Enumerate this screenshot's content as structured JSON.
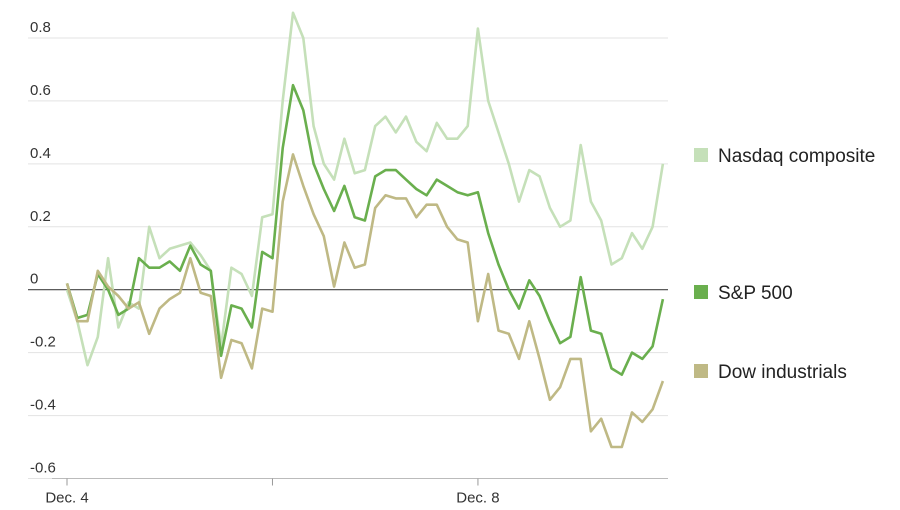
{
  "chart_data": {
    "type": "line",
    "x": [
      0,
      0.1,
      0.2,
      0.3,
      0.4,
      0.5,
      0.6,
      0.7,
      0.8,
      0.9,
      1,
      1.1,
      1.2,
      1.3,
      1.4,
      1.5,
      1.6,
      1.7,
      1.8,
      1.9,
      2,
      2.1,
      2.2,
      2.3,
      2.4,
      2.5,
      2.6,
      2.7,
      2.8,
      2.9,
      3,
      3.1,
      3.2,
      3.3,
      3.4,
      3.5,
      3.6,
      3.7,
      3.8,
      3.9,
      4,
      4.1,
      4.2,
      4.3,
      4.4,
      4.5,
      4.6,
      4.7,
      4.8,
      4.9,
      5,
      5.1,
      5.2,
      5.3,
      5.4,
      5.5,
      5.6,
      5.7,
      5.8
    ],
    "series": [
      {
        "name": "Nasdaq composite",
        "color": "#c5e0b9",
        "values": [
          0,
          -0.1,
          -0.24,
          -0.15,
          0.1,
          -0.12,
          -0.04,
          -0.06,
          0.2,
          0.1,
          0.13,
          0.14,
          0.15,
          0.11,
          0.06,
          -0.18,
          0.07,
          0.05,
          -0.02,
          0.23,
          0.24,
          0.6,
          0.88,
          0.8,
          0.52,
          0.4,
          0.35,
          0.48,
          0.37,
          0.38,
          0.52,
          0.55,
          0.5,
          0.55,
          0.47,
          0.44,
          0.53,
          0.48,
          0.48,
          0.52,
          0.83,
          0.6,
          0.5,
          0.4,
          0.28,
          0.38,
          0.36,
          0.26,
          0.2,
          0.22,
          0.46,
          0.28,
          0.22,
          0.08,
          0.1,
          0.18,
          0.13,
          0.2,
          0.4
        ]
      },
      {
        "name": "S&P 500",
        "color": "#6aaf4e",
        "values": [
          0.02,
          -0.09,
          -0.08,
          0.05,
          0,
          -0.08,
          -0.06,
          0.1,
          0.07,
          0.07,
          0.09,
          0.06,
          0.14,
          0.08,
          0.06,
          -0.21,
          -0.05,
          -0.06,
          -0.12,
          0.12,
          0.1,
          0.45,
          0.65,
          0.57,
          0.4,
          0.32,
          0.25,
          0.33,
          0.23,
          0.22,
          0.36,
          0.38,
          0.38,
          0.35,
          0.32,
          0.3,
          0.35,
          0.33,
          0.31,
          0.3,
          0.31,
          0.18,
          0.08,
          0,
          -0.06,
          0.03,
          -0.02,
          -0.1,
          -0.17,
          -0.15,
          0.04,
          -0.13,
          -0.14,
          -0.25,
          -0.27,
          -0.2,
          -0.22,
          -0.18,
          -0.03
        ]
      },
      {
        "name": "Dow industrials",
        "color": "#bfb985",
        "values": [
          0.02,
          -0.1,
          -0.1,
          0.06,
          0.01,
          -0.02,
          -0.06,
          -0.04,
          -0.14,
          -0.06,
          -0.03,
          -0.01,
          0.1,
          -0.01,
          -0.02,
          -0.28,
          -0.16,
          -0.17,
          -0.25,
          -0.06,
          -0.07,
          0.28,
          0.43,
          0.33,
          0.24,
          0.17,
          0.01,
          0.15,
          0.07,
          0.08,
          0.26,
          0.3,
          0.29,
          0.29,
          0.23,
          0.27,
          0.27,
          0.2,
          0.16,
          0.15,
          -0.1,
          0.05,
          -0.13,
          -0.14,
          -0.22,
          -0.1,
          -0.22,
          -0.35,
          -0.31,
          -0.22,
          -0.22,
          -0.45,
          -0.41,
          -0.5,
          -0.5,
          -0.39,
          -0.42,
          -0.38,
          -0.29
        ]
      }
    ],
    "xlim": [
      0,
      5.85
    ],
    "xticks": [
      {
        "value": 0,
        "label": "Dec. 4"
      },
      {
        "value": 2,
        "label": null
      },
      {
        "value": 4,
        "label": "Dec. 8"
      }
    ],
    "ylim": [
      -0.6,
      0.9
    ],
    "yticks": [
      {
        "value": -0.6,
        "label": "-0.6"
      },
      {
        "value": -0.4,
        "label": "-0.4"
      },
      {
        "value": -0.2,
        "label": "-0.2"
      },
      0,
      0.2,
      0.4,
      0.6,
      0.8
    ],
    "grid": true,
    "legend": "right"
  }
}
